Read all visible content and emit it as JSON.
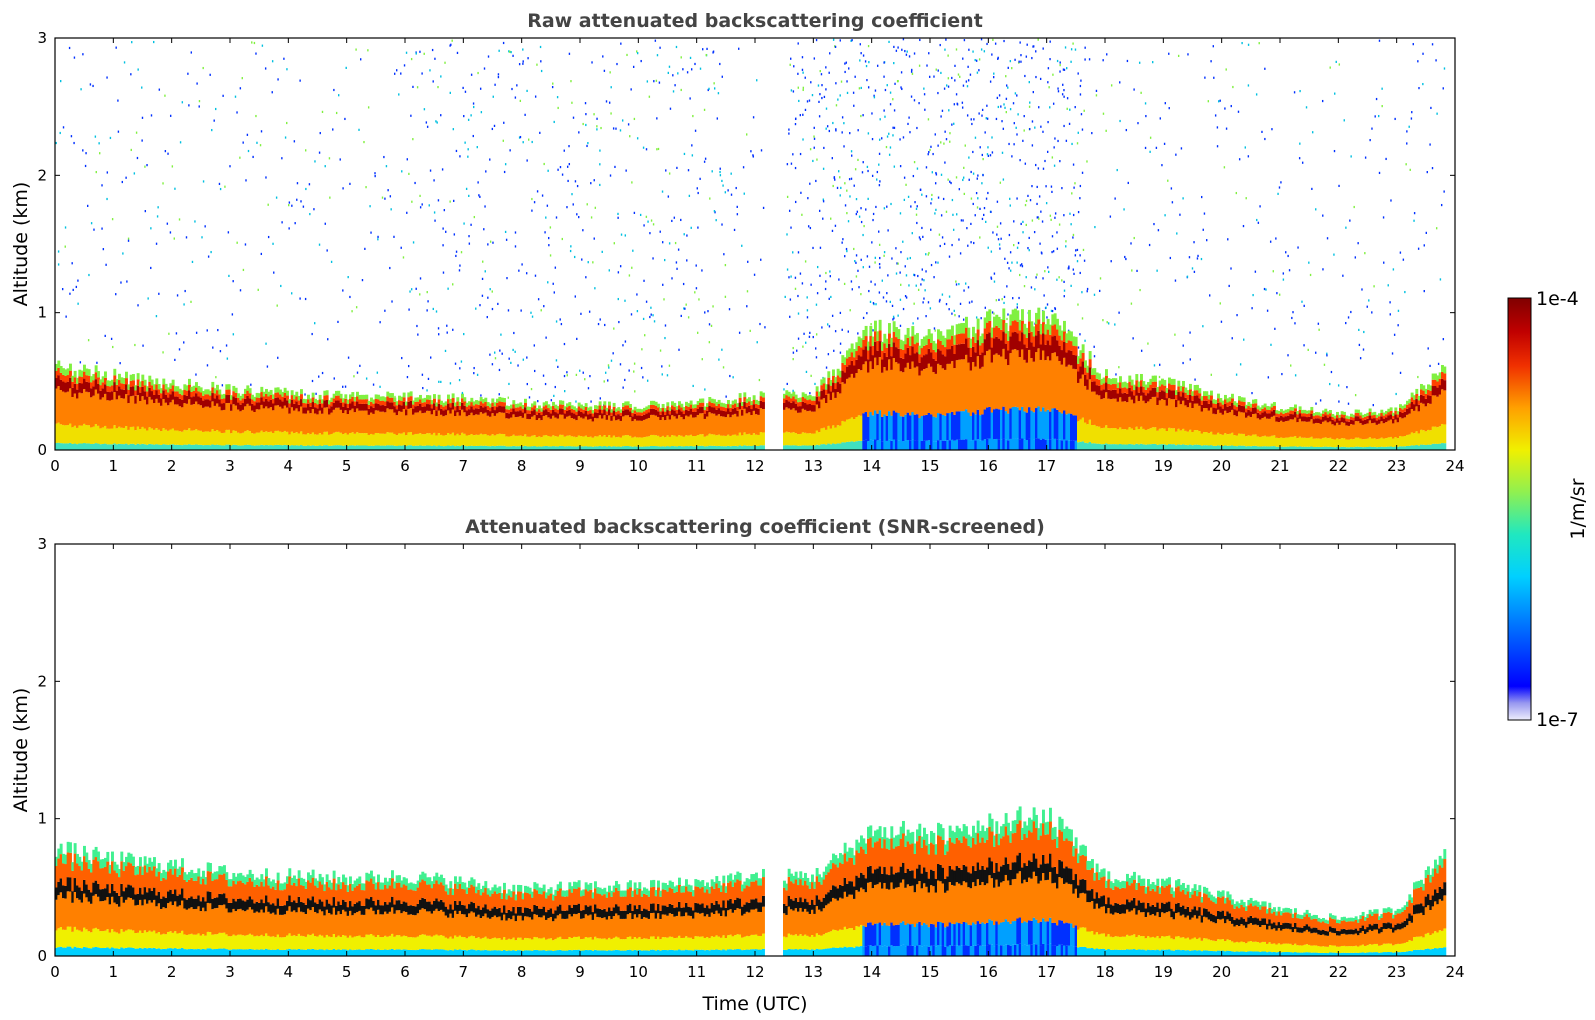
{
  "chart_data": [
    {
      "type": "heatmap",
      "title": "Raw attenuated backscattering coefficient",
      "xlabel": "",
      "ylabel": "Altitude (km)",
      "xlim": [
        0,
        24
      ],
      "ylim": [
        0,
        3
      ],
      "xticks": [
        "0",
        "1",
        "2",
        "3",
        "4",
        "5",
        "6",
        "7",
        "8",
        "9",
        "10",
        "11",
        "12",
        "13",
        "14",
        "15",
        "16",
        "17",
        "18",
        "19",
        "20",
        "21",
        "22",
        "23",
        "24"
      ],
      "yticks": [
        "0",
        "1",
        "2",
        "3"
      ],
      "screened": false,
      "layer_top_km": [
        [
          0,
          0.62
        ],
        [
          1,
          0.55
        ],
        [
          2,
          0.5
        ],
        [
          3,
          0.45
        ],
        [
          4,
          0.42
        ],
        [
          5,
          0.4
        ],
        [
          6,
          0.4
        ],
        [
          7,
          0.38
        ],
        [
          8,
          0.35
        ],
        [
          9,
          0.33
        ],
        [
          10,
          0.33
        ],
        [
          11,
          0.35
        ],
        [
          12,
          0.4
        ],
        [
          13,
          0.42
        ],
        [
          14,
          0.9
        ],
        [
          15,
          0.85
        ],
        [
          16,
          0.95
        ],
        [
          17,
          1.0
        ],
        [
          18,
          0.55
        ],
        [
          19,
          0.5
        ],
        [
          20,
          0.4
        ],
        [
          21,
          0.32
        ],
        [
          22,
          0.27
        ],
        [
          23,
          0.3
        ],
        [
          23.8,
          0.6
        ]
      ]
    },
    {
      "type": "heatmap",
      "title": "Attenuated backscattering coefficient (SNR-screened)",
      "xlabel": "Time (UTC)",
      "ylabel": "Altitude (km)",
      "xlim": [
        0,
        24
      ],
      "ylim": [
        0,
        3
      ],
      "xticks": [
        "0",
        "1",
        "2",
        "3",
        "4",
        "5",
        "6",
        "7",
        "8",
        "9",
        "10",
        "11",
        "12",
        "13",
        "14",
        "15",
        "16",
        "17",
        "18",
        "19",
        "20",
        "21",
        "22",
        "23",
        "24"
      ],
      "yticks": [
        "0",
        "1",
        "2",
        "3"
      ],
      "screened": true,
      "layer_top_km": [
        [
          0,
          0.8
        ],
        [
          1,
          0.72
        ],
        [
          2,
          0.68
        ],
        [
          3,
          0.62
        ],
        [
          4,
          0.6
        ],
        [
          5,
          0.58
        ],
        [
          6,
          0.6
        ],
        [
          7,
          0.55
        ],
        [
          8,
          0.5
        ],
        [
          9,
          0.52
        ],
        [
          10,
          0.52
        ],
        [
          11,
          0.55
        ],
        [
          12,
          0.6
        ],
        [
          13,
          0.6
        ],
        [
          14,
          0.95
        ],
        [
          15,
          0.9
        ],
        [
          16,
          1.0
        ],
        [
          17,
          1.05
        ],
        [
          18,
          0.6
        ],
        [
          19,
          0.55
        ],
        [
          20,
          0.45
        ],
        [
          21,
          0.35
        ],
        [
          22,
          0.28
        ],
        [
          23,
          0.35
        ],
        [
          23.8,
          0.8
        ]
      ]
    }
  ],
  "colorbar": {
    "label": "1/m/sr",
    "max_label": "1e-4",
    "min_label": "1e-7",
    "colormap": [
      "#e8e8f8",
      "#9090f0",
      "#0000ff",
      "#0050ff",
      "#00b0ff",
      "#00e0e0",
      "#40f090",
      "#a0f040",
      "#f0f000",
      "#ffb000",
      "#ff6000",
      "#e01000",
      "#b00000",
      "#800000"
    ]
  }
}
